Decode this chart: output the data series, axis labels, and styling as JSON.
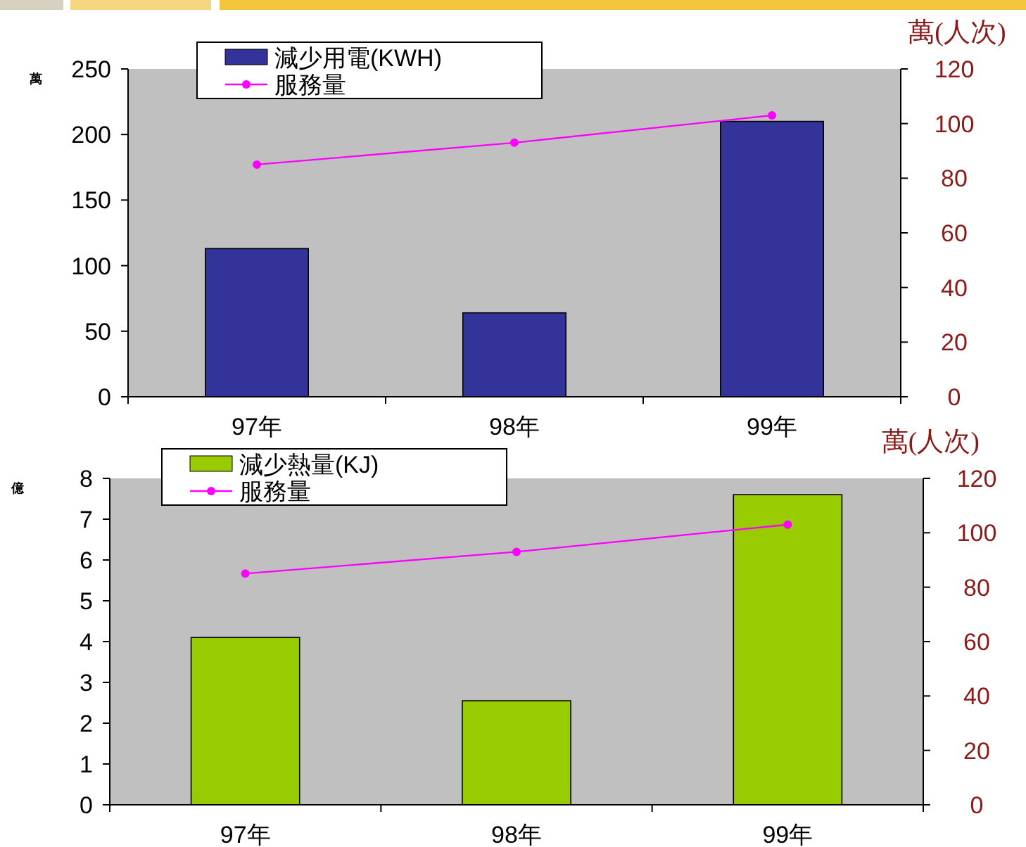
{
  "chart_data": [
    {
      "type": "bar",
      "categories": [
        "97年",
        "98年",
        "99年"
      ],
      "ylabel": "萬",
      "y2label": "萬(人次)",
      "ylim": [
        0,
        250
      ],
      "yticks": [
        0,
        50,
        100,
        150,
        200,
        250
      ],
      "y2lim": [
        0,
        120
      ],
      "y2ticks": [
        0,
        20,
        40,
        60,
        80,
        100,
        120
      ],
      "legend": "top left",
      "marker": "circle",
      "series": [
        {
          "name": "減少用電(KWH)",
          "color": "#333399",
          "values": [
            113,
            64,
            210
          ]
        },
        {
          "name": "服務量",
          "type": "line",
          "axis": "y2",
          "color": "#ff00ff",
          "values": [
            85,
            93,
            103
          ]
        }
      ]
    },
    {
      "type": "bar",
      "categories": [
        "97年",
        "98年",
        "99年"
      ],
      "ylabel": "億",
      "y2label": "萬(人次)",
      "ylim": [
        0,
        8
      ],
      "yticks": [
        0,
        1,
        2,
        3,
        4,
        5,
        6,
        7,
        8
      ],
      "y2lim": [
        0,
        120
      ],
      "y2ticks": [
        0,
        20,
        40,
        60,
        80,
        100,
        120
      ],
      "legend": "top left",
      "marker": "circle",
      "series": [
        {
          "name": "減少熱量(KJ)",
          "color": "#99cc00",
          "values": [
            4.1,
            2.55,
            7.6
          ]
        },
        {
          "name": "服務量",
          "type": "line",
          "axis": "y2",
          "color": "#ff00ff",
          "values": [
            85,
            93,
            103
          ]
        }
      ]
    }
  ]
}
